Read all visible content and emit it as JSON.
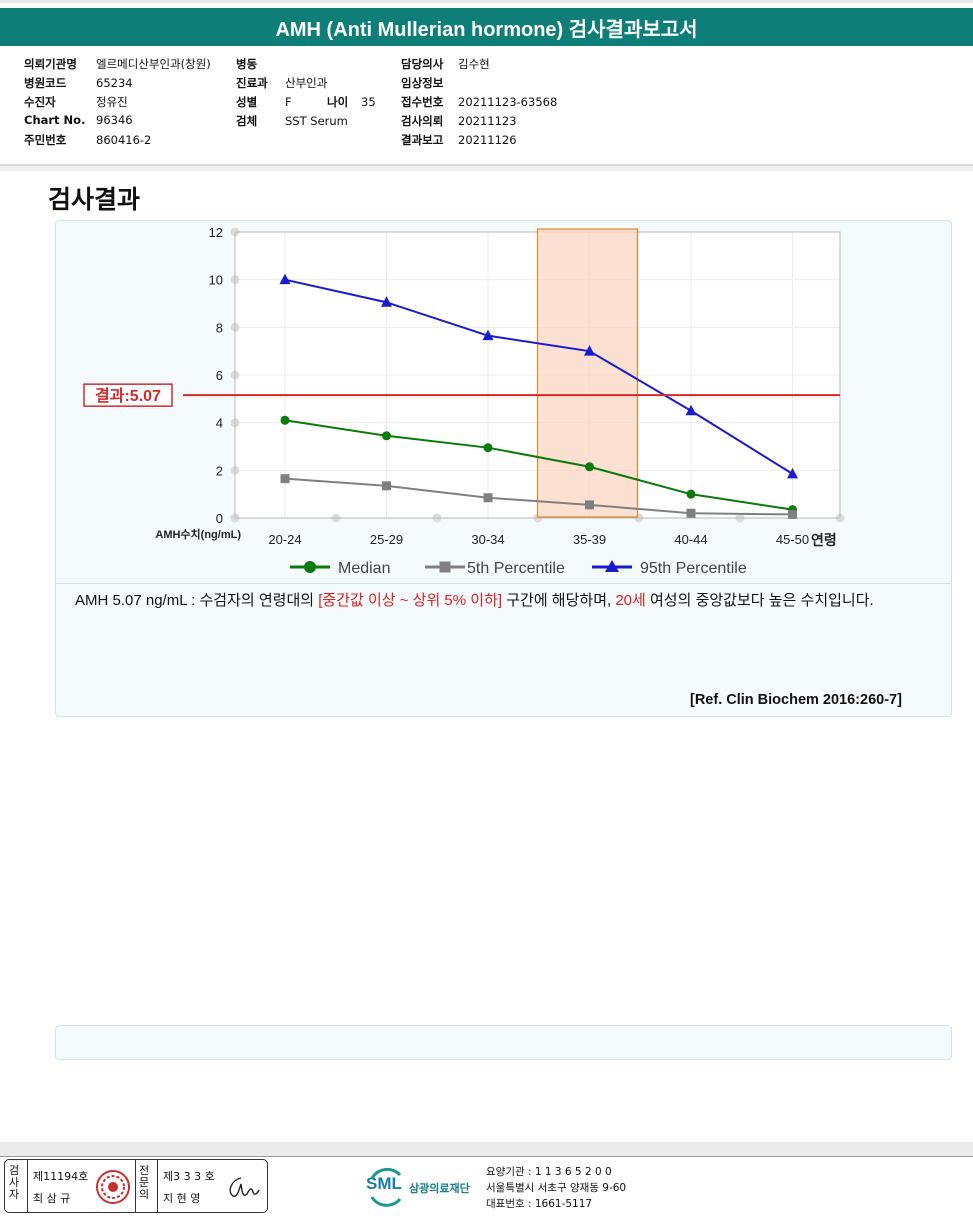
{
  "header": {
    "title": "AMH (Anti Mullerian hormone) 검사결과보고서"
  },
  "info": {
    "left": [
      {
        "label": "의뢰기관명",
        "value": "엘르메디산부인과(창원)"
      },
      {
        "label": "병원코드",
        "value": "65234"
      },
      {
        "label": "수진자",
        "value": "정유진"
      },
      {
        "label": "Chart No.",
        "value": "96346"
      },
      {
        "label": "주민번호",
        "value": "860416-2"
      }
    ],
    "middle": [
      {
        "label": "병동",
        "value": ""
      },
      {
        "label": "진료과",
        "value": "산부인과"
      },
      {
        "label": "성별",
        "value": "F"
      },
      {
        "label": "검체",
        "value": "SST Serum"
      }
    ],
    "age": {
      "label": "나이",
      "value": "35"
    },
    "right": [
      {
        "label": "담당의사",
        "value": "김수현"
      },
      {
        "label": "임상정보",
        "value": ""
      },
      {
        "label": "접수번호",
        "value": "20211123-63568"
      },
      {
        "label": "검사의뢰",
        "value": "20211123"
      },
      {
        "label": "결과보고",
        "value": "20211126"
      }
    ]
  },
  "section_title": "검사결과",
  "chart_data": {
    "type": "line",
    "categories": [
      "20-24",
      "25-29",
      "30-34",
      "35-39",
      "40-44",
      "45-50"
    ],
    "xlabel": "연령",
    "ylabel": "AMH수치(ng/mL)",
    "ylim": [
      0,
      12
    ],
    "yticks": [
      "0",
      "2",
      "4",
      "6",
      "8",
      "10",
      "12"
    ],
    "grid": true,
    "legend_position": "bottom",
    "series": [
      {
        "name": "Median",
        "values": [
          4.1,
          3.45,
          2.95,
          2.15,
          1.0,
          0.35
        ],
        "color": "#0a7a0a",
        "marker": "circle"
      },
      {
        "name": "5th Percentile",
        "values": [
          1.65,
          1.35,
          0.85,
          0.55,
          0.2,
          0.15
        ],
        "color": "#808080",
        "marker": "square"
      },
      {
        "name": "95th Percentile",
        "values": [
          10.0,
          9.05,
          7.65,
          7.0,
          4.5,
          1.85
        ],
        "color": "#1a1ad0",
        "marker": "triangle"
      }
    ],
    "result": {
      "label": "결과:5.07",
      "value": 5.07,
      "color": "#d42a2a"
    },
    "highlight_category": "35-39",
    "highlight_color": "#fbd6c2"
  },
  "comment": {
    "prefix": "AMH  5.07 ng/mL : 수검자의 연령대의 ",
    "range": "[중간값 이상 ~ 상위 5% 이하]",
    "middle": " 구간에 해당하며, ",
    "age": "20세",
    "suffix": " 여성의 중앙값보다 높은 수치입니다."
  },
  "reference": "[Ref. Clin Biochem 2016:260-7]",
  "footer": {
    "tester_label": "검사자",
    "tester_no": "제11194호",
    "tester_name": "최 삼 규",
    "specialist_label": "전문의",
    "specialist_no": "제3 3 3 호",
    "specialist_name": "지 현 영",
    "org_logo": "SML",
    "org_name": "삼광의료재단",
    "org_code": "요양기관 : 1 1 3 6 5 2 0 0",
    "org_address": "서울특별시 서초구 양재동 9-60",
    "org_phone": "대표번호 : 1661-5117"
  }
}
